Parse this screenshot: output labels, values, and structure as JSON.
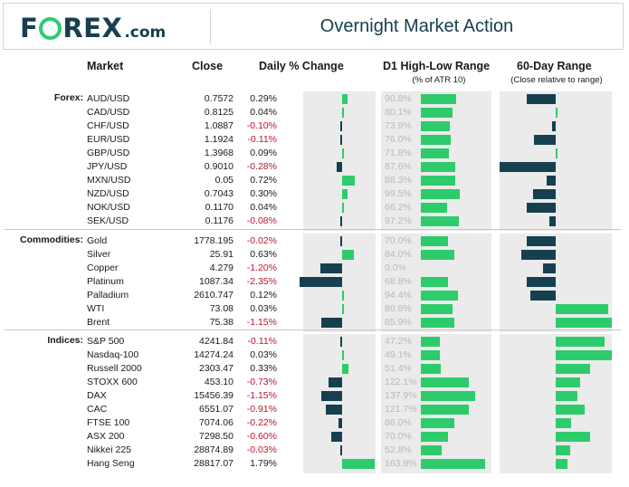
{
  "header": {
    "logo_pre": "F",
    "logo_post": "REX",
    "logo_domain": ".com",
    "title": "Overnight Market Action"
  },
  "columns": {
    "market": "Market",
    "close": "Close",
    "daily_change": "Daily % Change",
    "d1_range": "D1 High-Low Range",
    "d1_range_sub": "(% of ATR 10)",
    "day60": "60-Day Range",
    "day60_sub": "(Close relative to range)"
  },
  "colors": {
    "positive": "#2ecb6c",
    "negative": "#16404f",
    "negative_text": "#c0142e",
    "panel": "#ebebeb"
  },
  "groups": [
    {
      "label": "Forex:",
      "rows": [
        {
          "market": "AUD/USD",
          "close": "0.7572",
          "change": "0.29%",
          "change_value": 0.29,
          "atr": "90.8%",
          "atr_value": 90.8,
          "range60": -0.52
        },
        {
          "market": "CAD/USD",
          "close": "0.8125",
          "change": "0.04%",
          "change_value": 0.04,
          "atr": "80.1%",
          "atr_value": 80.1,
          "range60": 0.04
        },
        {
          "market": "CHF/USD",
          "close": "1.0887",
          "change": "-0.10%",
          "change_value": -0.1,
          "atr": "73.9%",
          "atr_value": 73.9,
          "range60": -0.06
        },
        {
          "market": "EUR/USD",
          "close": "1.1924",
          "change": "-0.11%",
          "change_value": -0.11,
          "atr": "76.0%",
          "atr_value": 76.0,
          "range60": -0.38
        },
        {
          "market": "GBP/USD",
          "close": "1.3968",
          "change": "0.09%",
          "change_value": 0.09,
          "atr": "71.8%",
          "atr_value": 71.8,
          "range60": 0.01
        },
        {
          "market": "JPY/USD",
          "close": "0.9010",
          "change": "-0.28%",
          "change_value": -0.28,
          "atr": "87.6%",
          "atr_value": 87.6,
          "range60": -1.0
        },
        {
          "market": "MXN/USD",
          "close": "0.05",
          "change": "0.72%",
          "change_value": 0.72,
          "atr": "88.3%",
          "atr_value": 88.3,
          "range60": -0.16
        },
        {
          "market": "NZD/USD",
          "close": "0.7043",
          "change": "0.30%",
          "change_value": 0.3,
          "atr": "99.5%",
          "atr_value": 99.5,
          "range60": -0.4
        },
        {
          "market": "NOK/USD",
          "close": "0.1170",
          "change": "0.04%",
          "change_value": 0.04,
          "atr": "66.2%",
          "atr_value": 66.2,
          "range60": -0.52
        },
        {
          "market": "SEK/USD",
          "close": "0.1176",
          "change": "-0.08%",
          "change_value": -0.08,
          "atr": "97.2%",
          "atr_value": 97.2,
          "range60": -0.12
        }
      ]
    },
    {
      "label": "Commodities:",
      "rows": [
        {
          "market": "Gold",
          "close": "1778.195",
          "change": "-0.02%",
          "change_value": -0.02,
          "atr": "70.0%",
          "atr_value": 70.0,
          "range60": -0.52
        },
        {
          "market": "Silver",
          "close": "25.91",
          "change": "0.63%",
          "change_value": 0.63,
          "atr": "84.0%",
          "atr_value": 84.0,
          "range60": -0.62
        },
        {
          "market": "Copper",
          "close": "4.279",
          "change": "-1.20%",
          "change_value": -1.2,
          "atr": "0.0%",
          "atr_value": 0.0,
          "range60": -0.23
        },
        {
          "market": "Platinum",
          "close": "1087.34",
          "change": "-2.35%",
          "change_value": -2.35,
          "atr": "68.8%",
          "atr_value": 68.8,
          "range60": -0.52
        },
        {
          "market": "Palladium",
          "close": "2610.747",
          "change": "0.12%",
          "change_value": 0.12,
          "atr": "94.4%",
          "atr_value": 94.4,
          "range60": -0.45
        },
        {
          "market": "WTI",
          "close": "73.08",
          "change": "0.03%",
          "change_value": 0.03,
          "atr": "80.8%",
          "atr_value": 80.8,
          "range60": 0.93
        },
        {
          "market": "Brent",
          "close": "75.38",
          "change": "-1.15%",
          "change_value": -1.15,
          "atr": "85.9%",
          "atr_value": 85.9,
          "range60": 1.0
        }
      ]
    },
    {
      "label": "Indices:",
      "rows": [
        {
          "market": "S&P 500",
          "close": "4241.84",
          "change": "-0.11%",
          "change_value": -0.11,
          "atr": "47.2%",
          "atr_value": 47.2,
          "range60": 0.87
        },
        {
          "market": "Nasdaq-100",
          "close": "14274.24",
          "change": "0.03%",
          "change_value": 0.03,
          "atr": "49.1%",
          "atr_value": 49.1,
          "range60": 1.0
        },
        {
          "market": "Russell 2000",
          "close": "2303.47",
          "change": "0.33%",
          "change_value": 0.33,
          "atr": "51.4%",
          "atr_value": 51.4,
          "range60": 0.61
        },
        {
          "market": "STOXX 600",
          "close": "453.10",
          "change": "-0.73%",
          "change_value": -0.73,
          "atr": "122.1%",
          "atr_value": 122.1,
          "range60": 0.44
        },
        {
          "market": "DAX",
          "close": "15456.39",
          "change": "-1.15%",
          "change_value": -1.15,
          "atr": "137.9%",
          "atr_value": 137.9,
          "range60": 0.38
        },
        {
          "market": "CAC",
          "close": "6551.07",
          "change": "-0.91%",
          "change_value": -0.91,
          "atr": "121.7%",
          "atr_value": 121.7,
          "range60": 0.52
        },
        {
          "market": "FTSE 100",
          "close": "7074.06",
          "change": "-0.22%",
          "change_value": -0.22,
          "atr": "86.0%",
          "atr_value": 86.0,
          "range60": 0.27
        },
        {
          "market": "ASX 200",
          "close": "7298.50",
          "change": "-0.60%",
          "change_value": -0.6,
          "atr": "70.0%",
          "atr_value": 70.0,
          "range60": 0.61
        },
        {
          "market": "Nikkei 225",
          "close": "28874.89",
          "change": "-0.03%",
          "change_value": -0.03,
          "atr": "52.8%",
          "atr_value": 52.8,
          "range60": 0.25
        },
        {
          "market": "Hang Seng",
          "close": "28817.07",
          "change": "1.79%",
          "change_value": 1.79,
          "atr": "163.9%",
          "atr_value": 163.9,
          "range60": 0.21
        }
      ]
    }
  ]
}
